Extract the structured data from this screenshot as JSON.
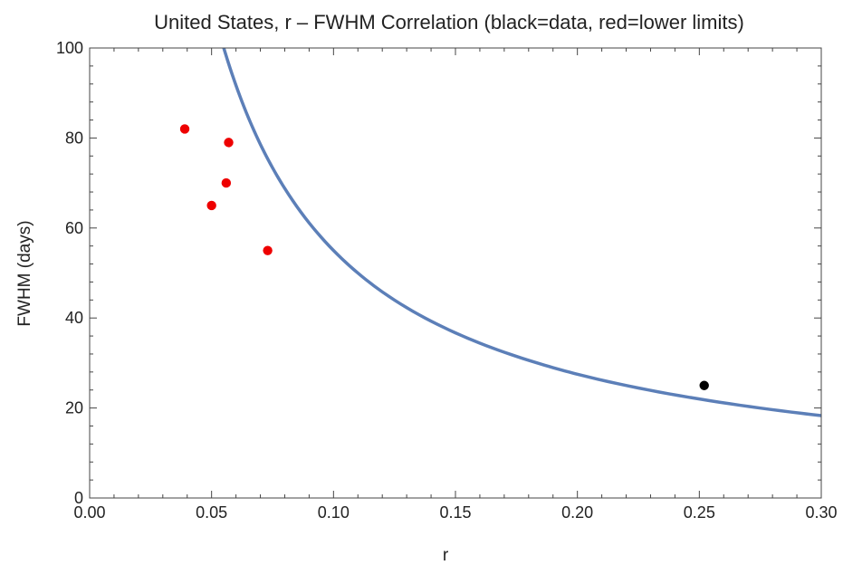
{
  "chart_data": {
    "type": "scatter",
    "title": "United States, r – FWHM Correlation (black=data, red=lower limits)",
    "xlabel": "r",
    "ylabel": "FWHM (days)",
    "xlim": [
      0,
      0.3
    ],
    "ylim": [
      0,
      100
    ],
    "x_ticks": [
      "0.00",
      "0.05",
      "0.10",
      "0.15",
      "0.20",
      "0.25",
      "0.30"
    ],
    "y_ticks": [
      "0",
      "20",
      "40",
      "60",
      "80",
      "100"
    ],
    "series": [
      {
        "kind": "points",
        "color": "#000000",
        "points": [
          {
            "x": 0.252,
            "y": 25
          }
        ]
      },
      {
        "kind": "points",
        "color": "#ee0000",
        "points": [
          {
            "x": 0.039,
            "y": 82
          },
          {
            "x": 0.057,
            "y": 79
          },
          {
            "x": 0.056,
            "y": 70
          },
          {
            "x": 0.05,
            "y": 65
          },
          {
            "x": 0.073,
            "y": 55
          }
        ]
      },
      {
        "kind": "curve",
        "color": "#5c7fb8",
        "points": [
          {
            "x": 0.055,
            "y": 100
          },
          {
            "x": 0.06,
            "y": 91.7
          },
          {
            "x": 0.07,
            "y": 78.6
          },
          {
            "x": 0.08,
            "y": 68.8
          },
          {
            "x": 0.1,
            "y": 55.0
          },
          {
            "x": 0.12,
            "y": 45.8
          },
          {
            "x": 0.15,
            "y": 36.7
          },
          {
            "x": 0.18,
            "y": 30.6
          },
          {
            "x": 0.2,
            "y": 27.5
          },
          {
            "x": 0.25,
            "y": 22.0
          },
          {
            "x": 0.3,
            "y": 18.3
          }
        ]
      }
    ],
    "grid": false
  }
}
